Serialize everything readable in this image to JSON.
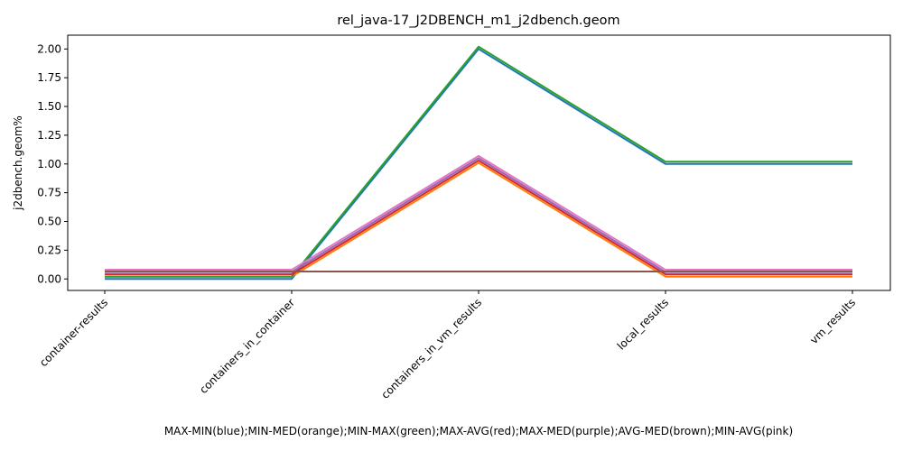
{
  "chart_data": {
    "type": "line",
    "title": "rel_java-17_J2DBENCH_m1_j2dbench.geom",
    "xlabel": "MAX-MIN(blue);MIN-MED(orange);MIN-MAX(green);MAX-AVG(red);MAX-MED(purple);AVG-MED(brown);MIN-AVG(pink)",
    "ylabel": "j2dbench.geom%",
    "categories": [
      "container-results",
      "containers_in_container",
      "containers_in_vm_results",
      "local_results",
      "vm_results"
    ],
    "y_ticks": [
      "0.00",
      "0.25",
      "0.50",
      "0.75",
      "1.00",
      "1.25",
      "1.50",
      "1.75",
      "2.00"
    ],
    "ylim": [
      -0.1,
      2.12
    ],
    "grid": false,
    "series": [
      {
        "name": "MAX-MIN",
        "color": "#1f77b4",
        "values": [
          0.0,
          0.0,
          2.0,
          1.0,
          1.0
        ]
      },
      {
        "name": "MIN-MED",
        "color": "#ff7f0e",
        "values": [
          0.02,
          0.02,
          1.01,
          0.02,
          0.02
        ]
      },
      {
        "name": "MIN-MAX",
        "color": "#2ca02c",
        "values": [
          0.02,
          0.02,
          2.02,
          1.02,
          1.02
        ]
      },
      {
        "name": "MAX-AVG",
        "color": "#d62728",
        "values": [
          0.04,
          0.04,
          1.03,
          0.04,
          0.04
        ]
      },
      {
        "name": "MAX-MED",
        "color": "#9467bd",
        "values": [
          0.06,
          0.06,
          1.05,
          0.06,
          0.06
        ]
      },
      {
        "name": "AVG-MED",
        "color": "#8c564b",
        "values": [
          0.065,
          0.065,
          0.065,
          0.065,
          0.065
        ]
      },
      {
        "name": "MIN-AVG",
        "color": "#e377c2",
        "values": [
          0.08,
          0.08,
          1.07,
          0.08,
          0.08
        ]
      }
    ]
  }
}
